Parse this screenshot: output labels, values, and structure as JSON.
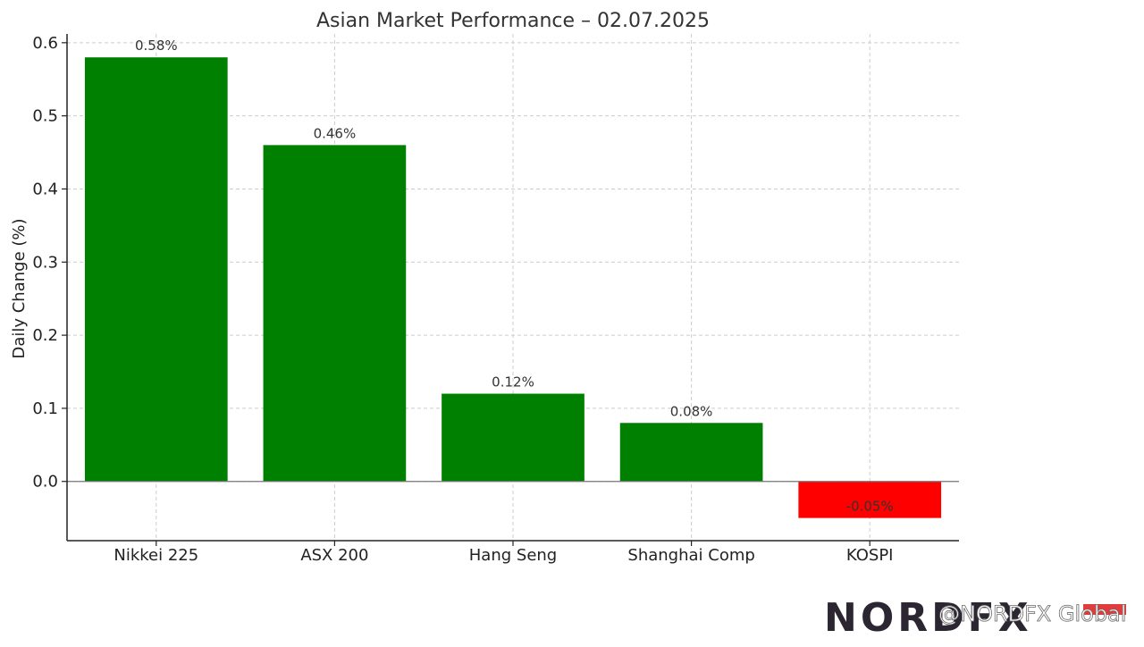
{
  "chart_data": {
    "type": "bar",
    "title": "Asian Market Performance – 02.07.2025",
    "xlabel": "",
    "ylabel": "Daily Change (%)",
    "categories": [
      "Nikkei 225",
      "ASX 200",
      "Hang Seng",
      "Shanghai Comp",
      "KOSPI"
    ],
    "values": [
      0.58,
      0.46,
      0.12,
      0.08,
      -0.05
    ],
    "data_labels": [
      "0.58%",
      "0.46%",
      "0.12%",
      "0.08%",
      "-0.05%"
    ],
    "colors": [
      "#008000",
      "#008000",
      "#008000",
      "#008000",
      "#ff0000"
    ],
    "positive_color": "#008000",
    "negative_color": "#ff0000",
    "ylim": [
      -0.081,
      0.612
    ],
    "yticks": [
      0.0,
      0.1,
      0.2,
      0.3,
      0.4,
      0.5,
      0.6
    ],
    "ytick_labels": [
      "0.0",
      "0.1",
      "0.2",
      "0.3",
      "0.4",
      "0.5",
      "0.6"
    ],
    "grid": true
  },
  "branding": {
    "logo_text": "NORDFX",
    "logo_accent_color": "#e23b3b",
    "watermark_text": "@NORDFX Global"
  }
}
